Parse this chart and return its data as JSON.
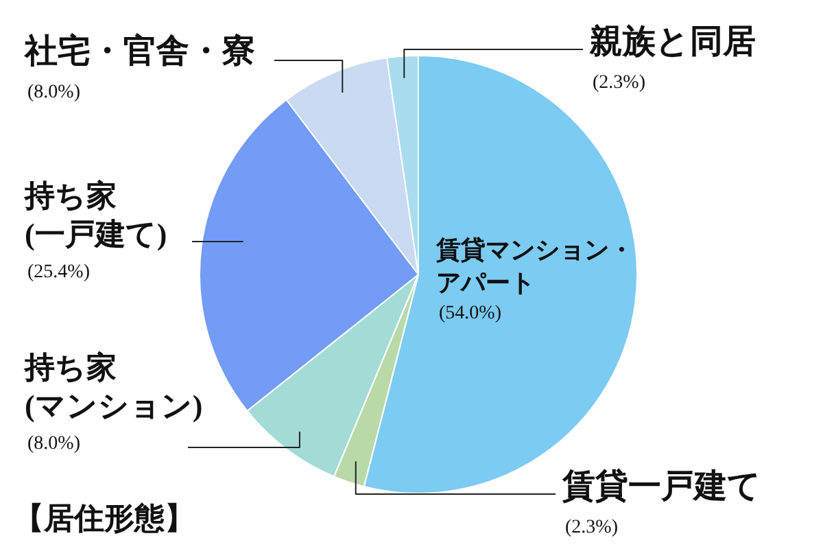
{
  "chart_data": {
    "type": "pie",
    "title": "【居住形態】",
    "categories": [
      "賃貸マンション・アパート",
      "賃貸一戸建て",
      "持ち家(マンション)",
      "持ち家(一戸建て)",
      "社宅・官舎・寮",
      "親族と同居"
    ],
    "values": [
      54.0,
      2.3,
      8.0,
      25.4,
      8.0,
      2.3
    ],
    "value_labels": [
      "(54.0%)",
      "(2.3%)",
      "(8.0%)",
      "(25.4%)",
      "(8.0%)",
      "(2.3%)"
    ],
    "colors": [
      "#7ccbf2",
      "#b9d9a9",
      "#a3dcd6",
      "#739cf7",
      "#c9daf2",
      "#a9dcef"
    ],
    "legend": false
  }
}
